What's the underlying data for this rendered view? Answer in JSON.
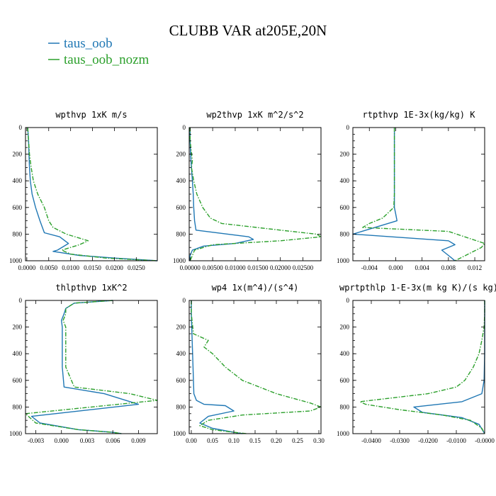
{
  "title": "CLUBB VAR at205E,20N",
  "legend": [
    {
      "label": "taus_oob",
      "color": "#1f77b4",
      "dash": "solid"
    },
    {
      "label": "taus_oob_nozm",
      "color": "#2ca02c",
      "dash": "dashdot"
    }
  ],
  "chart_data": [
    {
      "type": "line",
      "title": "wpthvp  1xK m/s",
      "ylim": [
        1000,
        0
      ],
      "xlim": [
        -0.0003,
        0.0298
      ],
      "yticks": [
        0,
        200,
        400,
        600,
        800,
        1000
      ],
      "xticks": [
        0.0,
        0.005,
        0.01,
        0.015,
        0.02,
        0.025
      ],
      "xtick_labels": [
        "0.0000",
        "0.0050",
        "0.0100",
        "0.0150",
        "0.0200",
        "0.0250"
      ],
      "series": [
        {
          "name": "taus_oob",
          "x": [
            0.0002,
            0.0004,
            0.0005,
            0.0006,
            0.0008,
            0.0012,
            0.002,
            0.003,
            0.004,
            0.0075,
            0.0095,
            0.007,
            0.006,
            0.012,
            0.02,
            0.0298
          ],
          "y": [
            0,
            100,
            200,
            300,
            400,
            500,
            600,
            700,
            790,
            820,
            870,
            920,
            930,
            960,
            980,
            1000
          ]
        },
        {
          "name": "taus_oob_nozm",
          "x": [
            0.0002,
            0.0004,
            0.0006,
            0.001,
            0.0015,
            0.0025,
            0.004,
            0.005,
            0.006,
            0.009,
            0.014,
            0.012,
            0.008,
            0.01,
            0.018,
            0.0298
          ],
          "y": [
            0,
            100,
            200,
            300,
            400,
            500,
            600,
            700,
            750,
            800,
            850,
            880,
            920,
            950,
            980,
            1000
          ]
        }
      ]
    },
    {
      "type": "line",
      "title": "wp2thvp  1xK m^2/s^2",
      "ylim": [
        1000,
        0
      ],
      "xlim": [
        -0.0002,
        0.029
      ],
      "yticks": [
        0,
        200,
        400,
        600,
        800,
        1000
      ],
      "xticks": [
        0.0,
        0.005,
        0.01,
        0.015,
        0.02,
        0.025
      ],
      "xtick_labels": [
        "0.00000",
        "0.00500",
        "0.01000",
        "0.01500",
        "0.02000",
        "0.02500"
      ],
      "series": [
        {
          "name": "taus_oob",
          "x": [
            0.0,
            0.0,
            0.0001,
            0.0003,
            0.0005,
            0.0007,
            0.0008,
            0.001,
            0.0013,
            0.013,
            0.014,
            0.01,
            0.003,
            0.0005,
            0.0,
            0.0
          ],
          "y": [
            0,
            100,
            200,
            300,
            400,
            500,
            600,
            700,
            770,
            820,
            840,
            870,
            890,
            920,
            960,
            1000
          ]
        },
        {
          "name": "taus_oob_nozm",
          "x": [
            0.0,
            0.0,
            0.0005,
            0.0003,
            0.0008,
            0.0015,
            0.0028,
            0.0045,
            0.007,
            0.02,
            0.028,
            0.029,
            0.02,
            0.005,
            0.001,
            0.0005,
            0.0
          ],
          "y": [
            0,
            100,
            250,
            300,
            400,
            500,
            600,
            680,
            720,
            770,
            800,
            820,
            850,
            880,
            920,
            960,
            1000
          ]
        }
      ]
    },
    {
      "type": "line",
      "title": "rtpthvp  1E-3x(kg/kg) K",
      "ylim": [
        1000,
        0
      ],
      "xlim": [
        -0.0065,
        0.0135
      ],
      "yticks": [
        0,
        200,
        400,
        600,
        800,
        1000
      ],
      "xticks": [
        -0.004,
        0.0,
        0.004,
        0.008,
        0.012
      ],
      "xtick_labels": [
        "-0.004",
        "0.000",
        "0.004",
        "0.008",
        "0.012"
      ],
      "series": [
        {
          "name": "taus_oob",
          "x": [
            -0.0002,
            -0.0002,
            -0.0002,
            -0.0002,
            -0.0002,
            -0.0002,
            -0.0002,
            0.0,
            0.0002,
            -0.0065,
            0.008,
            0.009,
            0.007,
            0.008,
            0.009
          ],
          "y": [
            0,
            100,
            200,
            300,
            400,
            500,
            600,
            650,
            700,
            800,
            850,
            880,
            920,
            960,
            1000
          ]
        },
        {
          "name": "taus_oob_nozm",
          "x": [
            -0.0002,
            -0.0002,
            -0.0002,
            -0.0002,
            -0.0002,
            -0.0002,
            -0.0003,
            -0.002,
            -0.004,
            -0.005,
            0.008,
            0.0135,
            0.013,
            0.011,
            0.009
          ],
          "y": [
            0,
            100,
            200,
            300,
            400,
            500,
            600,
            680,
            720,
            750,
            780,
            870,
            900,
            950,
            1000
          ]
        }
      ]
    },
    {
      "type": "line",
      "title": "thlpthvp  1xK^2",
      "ylim": [
        1000,
        0
      ],
      "xlim": [
        -0.0042,
        0.0112
      ],
      "yticks": [
        0,
        200,
        400,
        600,
        800,
        1000
      ],
      "xticks": [
        -0.003,
        0.0,
        0.003,
        0.006,
        0.009
      ],
      "xtick_labels": [
        "-0.003",
        "0.000",
        "0.003",
        "0.006",
        "0.009"
      ],
      "series": [
        {
          "name": "taus_oob",
          "x": [
            0.006,
            0.0015,
            0.0005,
            0.0003,
            0.0,
            0.0001,
            0.0001,
            0.0001,
            0.0001,
            0.0003,
            0.005,
            0.009,
            -0.0035,
            -0.0025,
            0.002,
            0.006,
            0.007
          ],
          "y": [
            0,
            20,
            60,
            100,
            150,
            200,
            300,
            400,
            500,
            650,
            700,
            780,
            870,
            920,
            970,
            990,
            1000
          ]
        },
        {
          "name": "taus_oob_nozm",
          "x": [
            0.006,
            0.0015,
            0.0005,
            0.0005,
            0.0002,
            0.0005,
            0.0005,
            0.0005,
            0.0005,
            0.0015,
            0.008,
            0.0112,
            -0.0042,
            -0.003,
            0.002,
            0.006,
            0.007
          ],
          "y": [
            0,
            20,
            60,
            100,
            150,
            200,
            300,
            400,
            500,
            650,
            700,
            750,
            850,
            920,
            970,
            990,
            1000
          ]
        }
      ]
    },
    {
      "type": "line",
      "title": "wp4  1x(m^4)/(s^4)",
      "ylim": [
        1000,
        0
      ],
      "xlim": [
        -0.005,
        0.305
      ],
      "yticks": [
        0,
        200,
        400,
        600,
        800,
        1000
      ],
      "xticks": [
        0.0,
        0.05,
        0.1,
        0.15,
        0.2,
        0.25,
        0.3
      ],
      "xtick_labels": [
        "0.00",
        "0.05",
        "0.10",
        "0.15",
        "0.20",
        "0.25",
        "0.30"
      ],
      "series": [
        {
          "name": "taus_oob",
          "x": [
            0.0,
            0.0,
            0.001,
            0.002,
            0.003,
            0.004,
            0.005,
            0.006,
            0.012,
            0.03,
            0.08,
            0.1,
            0.04,
            0.02,
            0.05,
            0.1,
            0.12
          ],
          "y": [
            0,
            100,
            200,
            300,
            400,
            500,
            600,
            700,
            750,
            780,
            790,
            830,
            870,
            920,
            960,
            990,
            1000
          ]
        },
        {
          "name": "taus_oob_nozm",
          "x": [
            0.0,
            0.0,
            0.005,
            0.04,
            0.03,
            0.05,
            0.08,
            0.12,
            0.2,
            0.28,
            0.305,
            0.28,
            0.12,
            0.04,
            0.02,
            0.05,
            0.1,
            0.13
          ],
          "y": [
            0,
            100,
            250,
            300,
            350,
            400,
            500,
            600,
            700,
            770,
            800,
            830,
            860,
            900,
            940,
            970,
            990,
            1000
          ]
        }
      ]
    },
    {
      "type": "line",
      "title": "wprtpthlp  1-E-3x(m kg K)/(s kg)",
      "ylim": [
        1000,
        0
      ],
      "xlim": [
        -0.0465,
        0.0
      ],
      "yticks": [
        0,
        200,
        400,
        600,
        800,
        1000
      ],
      "xticks": [
        -0.04,
        -0.03,
        -0.02,
        -0.01,
        0.0
      ],
      "xtick_labels": [
        "-0.0400",
        "-0.0300",
        "-0.0200",
        "-0.0100",
        "-0.0000"
      ],
      "series": [
        {
          "name": "taus_oob",
          "x": [
            0.0,
            0.0,
            0.0,
            0.0,
            0.0,
            -0.0001,
            -0.0002,
            -0.001,
            -0.008,
            -0.025,
            -0.022,
            -0.008,
            -0.002,
            0.0
          ],
          "y": [
            0,
            100,
            200,
            300,
            400,
            500,
            600,
            700,
            760,
            800,
            840,
            880,
            930,
            1000
          ]
        },
        {
          "name": "taus_oob_nozm",
          "x": [
            0.0,
            0.0,
            -0.0002,
            -0.001,
            -0.002,
            -0.004,
            -0.007,
            -0.01,
            -0.02,
            -0.044,
            -0.042,
            -0.03,
            -0.015,
            -0.005,
            -0.001,
            0.0
          ],
          "y": [
            0,
            100,
            200,
            300,
            400,
            500,
            600,
            650,
            700,
            760,
            780,
            820,
            860,
            900,
            960,
            1000
          ]
        }
      ]
    }
  ]
}
